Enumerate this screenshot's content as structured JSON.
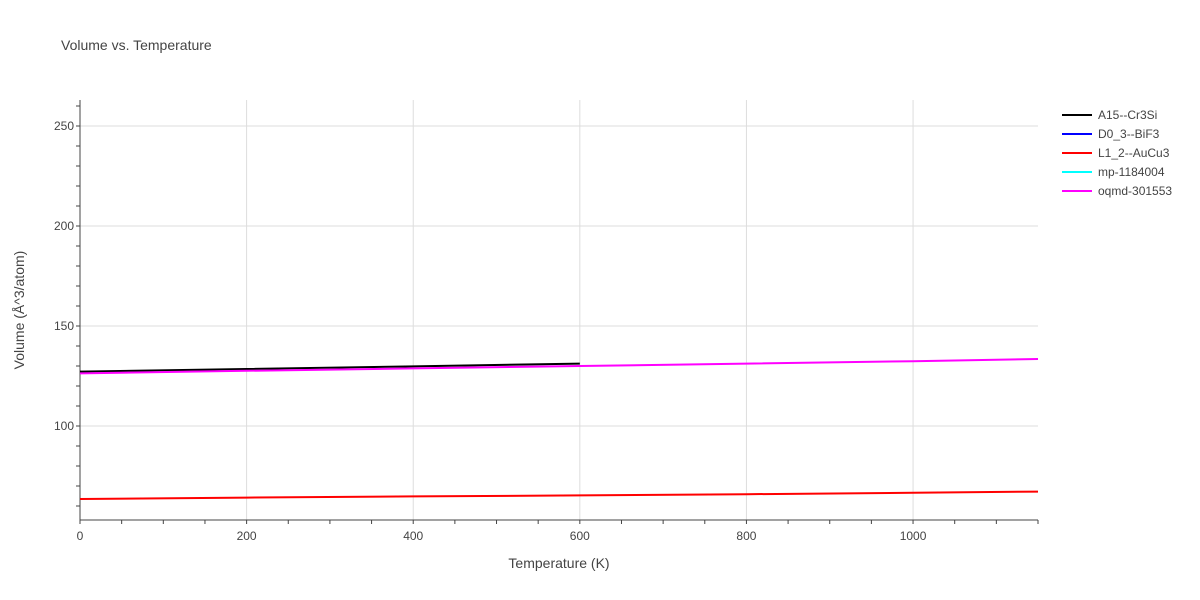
{
  "chart_data": {
    "type": "line",
    "title": "Volume vs. Temperature",
    "xlabel": "Temperature (K)",
    "ylabel": "Volume (Å^3/atom)",
    "xlim": [
      0,
      1150
    ],
    "ylim": [
      53,
      263
    ],
    "xticks": [
      0,
      200,
      400,
      600,
      800,
      1000
    ],
    "yticks": [
      100,
      150,
      200,
      250
    ],
    "grid": true,
    "legend_position": "top-right",
    "series": [
      {
        "name": "A15--Cr3Si",
        "color": "#000000",
        "x": [
          0,
          200,
          400,
          600
        ],
        "y": [
          127.2,
          128.5,
          129.8,
          131.2
        ]
      },
      {
        "name": "D0_3--BiF3",
        "color": "#0000ff",
        "x": [],
        "y": []
      },
      {
        "name": "L1_2--AuCu3",
        "color": "#ff0000",
        "x": [
          0,
          200,
          400,
          600,
          800,
          1000,
          1150
        ],
        "y": [
          63.5,
          64.2,
          64.8,
          65.3,
          65.9,
          66.6,
          67.2
        ]
      },
      {
        "name": "mp-1184004",
        "color": "#00ffff",
        "x": [],
        "y": []
      },
      {
        "name": "oqmd-301553",
        "color": "#ff00ff",
        "x": [
          0,
          200,
          400,
          600,
          800,
          1000,
          1150
        ],
        "y": [
          126.3,
          127.6,
          128.8,
          130.0,
          131.2,
          132.4,
          133.5
        ]
      }
    ]
  }
}
